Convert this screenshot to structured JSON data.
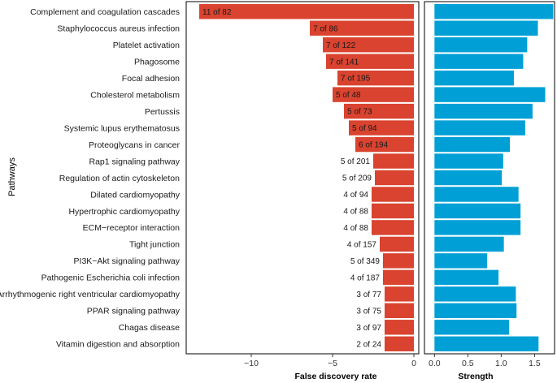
{
  "chart_data": [
    {
      "type": "bar",
      "orientation": "horizontal",
      "ylabel": "Pathways",
      "xlabel": "False discovery rate",
      "xlim": [
        -14,
        0.3
      ],
      "xticks": [
        -10,
        -5,
        0
      ],
      "xtick_labels": [
        "−10",
        "−5",
        "0"
      ],
      "bar_color": "#d9432f",
      "grid": false,
      "categories": [
        "Complement and coagulation cascades",
        "Staphylococcus aureus infection",
        "Platelet activation",
        "Phagosome",
        "Focal adhesion",
        "Cholesterol metabolism",
        "Pertussis",
        "Systemic lupus erythematosus",
        "Proteoglycans in cancer",
        "Rap1 signaling pathway",
        "Regulation of actin cytoskeleton",
        "Dilated cardiomyopathy",
        "Hypertrophic cardiomyopathy",
        "ECM−receptor interaction",
        "Tight junction",
        "PI3K−Akt signaling pathway",
        "Pathogenic Escherichia coli infection",
        "Arrhythmogenic right ventricular cardiomyopathy",
        "PPAR signaling pathway",
        "Chagas disease",
        "Vitamin digestion and absorption"
      ],
      "values": [
        -13.2,
        -6.4,
        -5.6,
        -5.4,
        -4.7,
        -5.0,
        -4.3,
        -4.0,
        -3.6,
        -2.5,
        -2.4,
        -2.6,
        -2.6,
        -2.6,
        -2.1,
        -1.9,
        -1.9,
        -1.8,
        -1.8,
        -1.8,
        -1.8
      ],
      "bar_labels": [
        "11 of 82",
        "7 of 86",
        "7 of 122",
        "7 of 141",
        "7 of 195",
        "5 of 48",
        "5 of 73",
        "5 of 94",
        "6 of 194",
        "5 of 201",
        "5 of 209",
        "4 of 94",
        "4 of 88",
        "4 of 88",
        "4 of 157",
        "5 of 349",
        "4 of 187",
        "3 of 77",
        "3 of 75",
        "3 of 97",
        "2 of 24"
      ]
    },
    {
      "type": "bar",
      "orientation": "horizontal",
      "xlabel": "Strength",
      "xlim": [
        -0.15,
        1.8
      ],
      "xticks": [
        0,
        0.5,
        1,
        1.5
      ],
      "xtick_labels": [
        "0.0",
        "0.5",
        "1.0",
        "1.5"
      ],
      "bar_color": "#00a0d6",
      "grid": false,
      "values": [
        1.78,
        1.55,
        1.39,
        1.33,
        1.19,
        1.66,
        1.47,
        1.36,
        1.13,
        1.03,
        1.01,
        1.26,
        1.29,
        1.29,
        1.04,
        0.79,
        0.96,
        1.22,
        1.23,
        1.12,
        1.56
      ]
    }
  ]
}
